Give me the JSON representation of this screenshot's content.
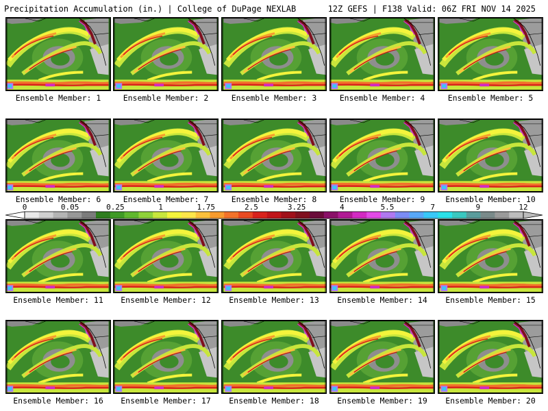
{
  "header": {
    "title_left": "Precipitation Accumulation (in.) | College of DuPage NEXLAB",
    "title_right": "12Z GEFS | F138 Valid: 06Z FRI NOV 14 2025"
  },
  "colorbar": {
    "tick_labels": [
      "0",
      "0.05",
      "0.25",
      "1",
      "1.75",
      "2.5",
      "3.25",
      "4",
      "5.5",
      "7",
      "9",
      "12"
    ],
    "colors": [
      "#e8e8e8",
      "#d0d0d0",
      "#b4b4b4",
      "#989898",
      "#7c7c7c",
      "#2e7d1e",
      "#3f9a25",
      "#60b82e",
      "#8fd23a",
      "#c8e63c",
      "#f4f43c",
      "#fde64a",
      "#fbc13c",
      "#f79b2e",
      "#f2722a",
      "#e84a22",
      "#d8221c",
      "#c0141a",
      "#a0101a",
      "#80101e",
      "#6a0c3a",
      "#8a1068",
      "#b01a94",
      "#d22ac2",
      "#e24ae6",
      "#b078f0",
      "#7c8cf4",
      "#58a8f8",
      "#38c8f8",
      "#2ae0e8",
      "#3ac8c0",
      "#5a9c9c",
      "#7a8a8a",
      "#9a9a9a",
      "#bcbcbc"
    ]
  },
  "members": [
    {
      "label": "Ensemble Member: 1"
    },
    {
      "label": "Ensemble Member: 2"
    },
    {
      "label": "Ensemble Member: 3"
    },
    {
      "label": "Ensemble Member: 4"
    },
    {
      "label": "Ensemble Member: 5"
    },
    {
      "label": "Ensemble Member: 6"
    },
    {
      "label": "Ensemble Member: 7"
    },
    {
      "label": "Ensemble Member: 8"
    },
    {
      "label": "Ensemble Member: 9"
    },
    {
      "label": "Ensemble Member: 10"
    },
    {
      "label": "Ensemble Member: 11"
    },
    {
      "label": "Ensemble Member: 12"
    },
    {
      "label": "Ensemble Member: 13"
    },
    {
      "label": "Ensemble Member: 14"
    },
    {
      "label": "Ensemble Member: 15"
    },
    {
      "label": "Ensemble Member: 16"
    },
    {
      "label": "Ensemble Member: 17"
    },
    {
      "label": "Ensemble Member: 18"
    },
    {
      "label": "Ensemble Member: 19"
    },
    {
      "label": "Ensemble Member: 20"
    }
  ]
}
